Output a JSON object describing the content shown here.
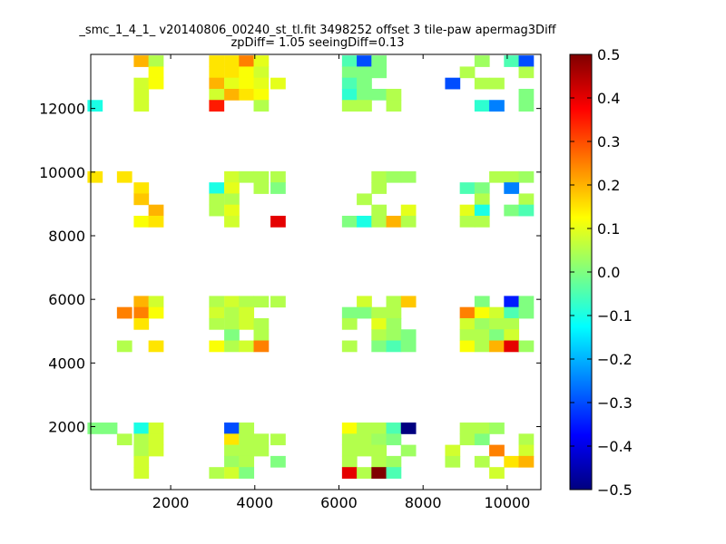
{
  "chart_data": {
    "type": "heatmap",
    "title": "_smc_1_4_1_ v20140806_00240_st_tl.fit 3498252 offset 3 tile-paw apermag3Diff",
    "subtitle": "zpDiff= 1.05 seeingDiff=0.13",
    "xlabel": "",
    "ylabel": "",
    "xlim": [
      100,
      10800
    ],
    "ylim": [
      20,
      13700
    ],
    "grid": false,
    "x_ticks": [
      2000,
      4000,
      6000,
      8000,
      10000
    ],
    "y_ticks": [
      2000,
      4000,
      6000,
      8000,
      10000,
      12000
    ],
    "colorbar": {
      "vmin": -0.5,
      "vmax": 0.5,
      "colormap": "jet",
      "ticks": [
        "0.5",
        "0.4",
        "0.3",
        "0.2",
        "0.1",
        "0.0",
        "−0.1",
        "−0.2",
        "−0.3",
        "−0.4",
        "−0.5"
      ]
    },
    "cell_size": 355,
    "cells": [
      [
        1300,
        13490,
        0.2
      ],
      [
        1650,
        13490,
        0.05
      ],
      [
        3090,
        13490,
        0.15
      ],
      [
        3450,
        13490,
        0.15
      ],
      [
        3800,
        13490,
        0.25
      ],
      [
        4150,
        13490,
        0.1
      ],
      [
        6250,
        13490,
        -0.05
      ],
      [
        6600,
        13490,
        -0.3
      ],
      [
        6950,
        13490,
        0.0
      ],
      [
        9400,
        13490,
        0.03
      ],
      [
        10100,
        13490,
        -0.05
      ],
      [
        10450,
        13490,
        -0.3
      ],
      [
        1650,
        13140,
        0.12
      ],
      [
        3090,
        13140,
        0.15
      ],
      [
        3450,
        13140,
        0.15
      ],
      [
        3800,
        13140,
        0.12
      ],
      [
        4150,
        13140,
        0.08
      ],
      [
        6250,
        13140,
        0.0
      ],
      [
        6600,
        13140,
        0.0
      ],
      [
        6950,
        13140,
        0.0
      ],
      [
        9050,
        13140,
        0.05
      ],
      [
        10450,
        13140,
        0.05
      ],
      [
        1300,
        12790,
        0.08
      ],
      [
        1650,
        12790,
        0.12
      ],
      [
        3090,
        12790,
        0.2
      ],
      [
        3450,
        12790,
        0.1
      ],
      [
        3800,
        12790,
        0.12
      ],
      [
        4150,
        12790,
        0.1
      ],
      [
        4550,
        12790,
        0.1
      ],
      [
        6250,
        12790,
        -0.05
      ],
      [
        6600,
        12790,
        0.0
      ],
      [
        8700,
        12790,
        -0.3
      ],
      [
        9400,
        12790,
        0.05
      ],
      [
        9750,
        12790,
        0.05
      ],
      [
        1300,
        12440,
        0.08
      ],
      [
        3090,
        12440,
        0.08
      ],
      [
        3450,
        12440,
        0.2
      ],
      [
        3800,
        12440,
        0.15
      ],
      [
        4150,
        12440,
        0.12
      ],
      [
        6250,
        12440,
        -0.08
      ],
      [
        6600,
        12440,
        0.0
      ],
      [
        6950,
        12440,
        0.0
      ],
      [
        7300,
        12440,
        0.05
      ],
      [
        10450,
        12440,
        0.0
      ],
      [
        200,
        12090,
        -0.1
      ],
      [
        1300,
        12090,
        0.08
      ],
      [
        3090,
        12090,
        0.35
      ],
      [
        4150,
        12090,
        0.05
      ],
      [
        6250,
        12090,
        0.05
      ],
      [
        6600,
        12090,
        0.05
      ],
      [
        7300,
        12090,
        0.05
      ],
      [
        9400,
        12090,
        -0.08
      ],
      [
        9750,
        12090,
        -0.25
      ],
      [
        10450,
        12090,
        0.0
      ],
      [
        200,
        9850,
        0.15
      ],
      [
        900,
        9850,
        0.15
      ],
      [
        3450,
        9850,
        0.08
      ],
      [
        3800,
        9850,
        0.05
      ],
      [
        4150,
        9850,
        0.05
      ],
      [
        4550,
        9850,
        0.05
      ],
      [
        6950,
        9850,
        0.05
      ],
      [
        7300,
        9850,
        0.03
      ],
      [
        7650,
        9850,
        0.03
      ],
      [
        9750,
        9850,
        0.05
      ],
      [
        10100,
        9850,
        0.05
      ],
      [
        10450,
        9850,
        0.03
      ],
      [
        1300,
        9500,
        0.15
      ],
      [
        3090,
        9500,
        -0.1
      ],
      [
        3450,
        9500,
        0.1
      ],
      [
        4150,
        9500,
        0.05
      ],
      [
        4550,
        9500,
        0.0
      ],
      [
        6950,
        9500,
        0.05
      ],
      [
        9050,
        9500,
        -0.05
      ],
      [
        9400,
        9500,
        0.0
      ],
      [
        10100,
        9500,
        -0.25
      ],
      [
        1300,
        9150,
        0.18
      ],
      [
        3090,
        9150,
        0.05
      ],
      [
        3450,
        9150,
        0.05
      ],
      [
        6600,
        9150,
        0.05
      ],
      [
        9400,
        9150,
        0.05
      ],
      [
        10450,
        9150,
        0.05
      ],
      [
        1650,
        8800,
        0.2
      ],
      [
        3090,
        8800,
        0.05
      ],
      [
        3450,
        8800,
        0.1
      ],
      [
        6950,
        8800,
        0.05
      ],
      [
        7650,
        8800,
        0.1
      ],
      [
        9050,
        8800,
        0.1
      ],
      [
        9400,
        8800,
        -0.1
      ],
      [
        10100,
        8800,
        0.0
      ],
      [
        10450,
        8800,
        -0.05
      ],
      [
        1300,
        8450,
        0.12
      ],
      [
        1650,
        8450,
        0.15
      ],
      [
        3450,
        8450,
        0.08
      ],
      [
        4550,
        8450,
        0.4
      ],
      [
        6250,
        8450,
        0.0
      ],
      [
        6600,
        8450,
        -0.1
      ],
      [
        6950,
        8450,
        0.05
      ],
      [
        7300,
        8450,
        0.2
      ],
      [
        7650,
        8450,
        0.05
      ],
      [
        9050,
        8450,
        0.05
      ],
      [
        9400,
        8450,
        0.05
      ],
      [
        1300,
        5930,
        0.2
      ],
      [
        1650,
        5930,
        0.08
      ],
      [
        3090,
        5930,
        0.05
      ],
      [
        3450,
        5930,
        0.08
      ],
      [
        3800,
        5930,
        0.05
      ],
      [
        4150,
        5930,
        0.05
      ],
      [
        4550,
        5930,
        0.05
      ],
      [
        6600,
        5930,
        0.08
      ],
      [
        7300,
        5930,
        0.05
      ],
      [
        7650,
        5930,
        0.18
      ],
      [
        9400,
        5930,
        0.0
      ],
      [
        10100,
        5930,
        -0.35
      ],
      [
        10450,
        5930,
        0.0
      ],
      [
        900,
        5580,
        0.25
      ],
      [
        1300,
        5580,
        0.25
      ],
      [
        1650,
        5580,
        0.12
      ],
      [
        3090,
        5580,
        0.08
      ],
      [
        3450,
        5580,
        0.05
      ],
      [
        3800,
        5580,
        0.08
      ],
      [
        6250,
        5580,
        0.0
      ],
      [
        6600,
        5580,
        0.0
      ],
      [
        6950,
        5580,
        0.05
      ],
      [
        7300,
        5580,
        0.05
      ],
      [
        9050,
        5580,
        0.25
      ],
      [
        9400,
        5580,
        0.12
      ],
      [
        9750,
        5580,
        0.08
      ],
      [
        10100,
        5580,
        -0.05
      ],
      [
        10450,
        5580,
        0.0
      ],
      [
        1300,
        5230,
        0.15
      ],
      [
        3090,
        5230,
        0.05
      ],
      [
        3450,
        5230,
        0.05
      ],
      [
        3800,
        5230,
        0.08
      ],
      [
        4150,
        5230,
        0.05
      ],
      [
        6250,
        5230,
        0.05
      ],
      [
        6950,
        5230,
        0.1
      ],
      [
        7300,
        5230,
        0.03
      ],
      [
        9050,
        5230,
        0.08
      ],
      [
        9400,
        5230,
        0.03
      ],
      [
        9750,
        5230,
        0.05
      ],
      [
        10100,
        5230,
        0.05
      ],
      [
        3450,
        4880,
        0.0
      ],
      [
        4150,
        4880,
        0.05
      ],
      [
        6950,
        4880,
        0.05
      ],
      [
        7300,
        4880,
        0.03
      ],
      [
        7650,
        4880,
        0.0
      ],
      [
        9050,
        4880,
        0.05
      ],
      [
        9400,
        4880,
        0.05
      ],
      [
        9750,
        4880,
        0.0
      ],
      [
        10100,
        4880,
        0.08
      ],
      [
        900,
        4530,
        0.05
      ],
      [
        1650,
        4530,
        0.15
      ],
      [
        3090,
        4530,
        0.12
      ],
      [
        3450,
        4530,
        0.05
      ],
      [
        3800,
        4530,
        0.08
      ],
      [
        4150,
        4530,
        0.25
      ],
      [
        6250,
        4530,
        0.05
      ],
      [
        6950,
        4530,
        0.0
      ],
      [
        7300,
        4530,
        -0.05
      ],
      [
        7650,
        4530,
        0.0
      ],
      [
        9050,
        4530,
        0.12
      ],
      [
        9400,
        4530,
        0.05
      ],
      [
        9750,
        4530,
        0.2
      ],
      [
        10100,
        4530,
        0.4
      ],
      [
        10450,
        4530,
        0.03
      ],
      [
        200,
        1950,
        0.0
      ],
      [
        550,
        1950,
        0.0
      ],
      [
        1300,
        1950,
        -0.1
      ],
      [
        1650,
        1950,
        0.08
      ],
      [
        3450,
        1950,
        -0.3
      ],
      [
        3800,
        1950,
        0.05
      ],
      [
        6250,
        1950,
        0.12
      ],
      [
        6600,
        1950,
        0.05
      ],
      [
        6950,
        1950,
        0.05
      ],
      [
        7300,
        1950,
        -0.05
      ],
      [
        7650,
        1950,
        -0.5
      ],
      [
        9050,
        1950,
        0.05
      ],
      [
        9400,
        1950,
        0.05
      ],
      [
        9750,
        1950,
        0.03
      ],
      [
        900,
        1600,
        0.05
      ],
      [
        1300,
        1600,
        0.05
      ],
      [
        1650,
        1600,
        0.08
      ],
      [
        3450,
        1600,
        0.15
      ],
      [
        3800,
        1600,
        0.05
      ],
      [
        4150,
        1600,
        0.05
      ],
      [
        4550,
        1600,
        0.05
      ],
      [
        6250,
        1600,
        0.05
      ],
      [
        6600,
        1600,
        0.05
      ],
      [
        6950,
        1600,
        0.03
      ],
      [
        7300,
        1600,
        0.0
      ],
      [
        9050,
        1600,
        0.05
      ],
      [
        9400,
        1600,
        0.0
      ],
      [
        10450,
        1600,
        0.05
      ],
      [
        1300,
        1250,
        0.05
      ],
      [
        1650,
        1250,
        0.08
      ],
      [
        3450,
        1250,
        0.05
      ],
      [
        3800,
        1250,
        0.05
      ],
      [
        4150,
        1250,
        0.05
      ],
      [
        6250,
        1250,
        0.05
      ],
      [
        6600,
        1250,
        0.05
      ],
      [
        6950,
        1250,
        0.05
      ],
      [
        7650,
        1250,
        0.03
      ],
      [
        8700,
        1250,
        0.08
      ],
      [
        9750,
        1250,
        0.25
      ],
      [
        10450,
        1250,
        0.08
      ],
      [
        1300,
        900,
        0.08
      ],
      [
        3450,
        900,
        0.03
      ],
      [
        3800,
        900,
        0.05
      ],
      [
        4550,
        900,
        0.0
      ],
      [
        6250,
        900,
        0.05
      ],
      [
        6950,
        900,
        0.05
      ],
      [
        7300,
        900,
        0.03
      ],
      [
        8700,
        900,
        0.05
      ],
      [
        9400,
        900,
        0.05
      ],
      [
        10100,
        900,
        0.15
      ],
      [
        10450,
        900,
        0.2
      ],
      [
        1300,
        550,
        0.08
      ],
      [
        3090,
        550,
        0.05
      ],
      [
        3450,
        550,
        0.08
      ],
      [
        3800,
        550,
        0.0
      ],
      [
        6250,
        550,
        0.4
      ],
      [
        6600,
        550,
        0.05
      ],
      [
        6950,
        550,
        0.5
      ],
      [
        7300,
        550,
        -0.05
      ],
      [
        9750,
        550,
        0.08
      ]
    ]
  }
}
